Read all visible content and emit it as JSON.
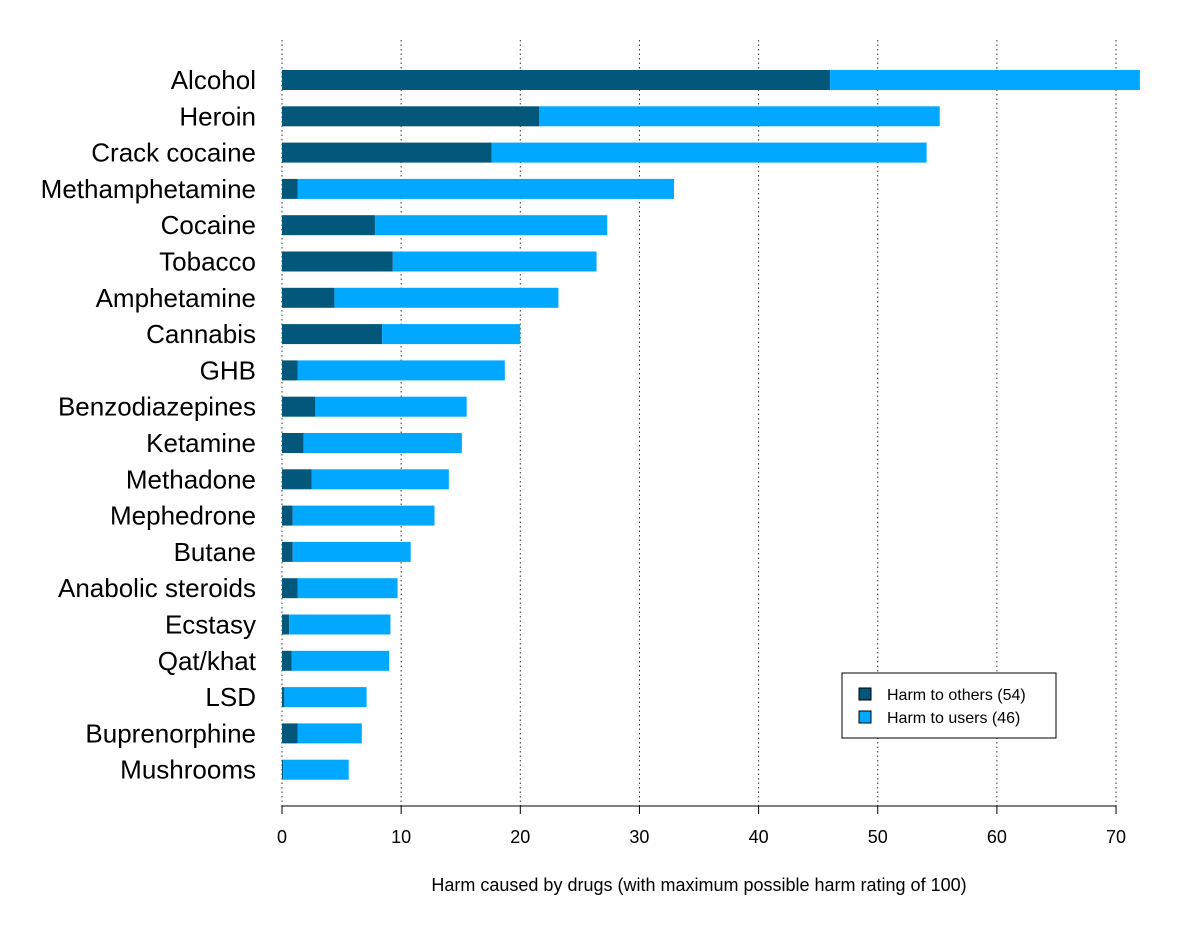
{
  "chart_data": {
    "type": "bar",
    "orientation": "horizontal",
    "stacked": true,
    "categories": [
      "Alcohol",
      "Heroin",
      "Crack cocaine",
      "Methamphetamine",
      "Cocaine",
      "Tobacco",
      "Amphetamine",
      "Cannabis",
      "GHB",
      "Benzodiazepines",
      "Ketamine",
      "Methadone",
      "Mephedrone",
      "Butane",
      "Anabolic steroids",
      "Ecstasy",
      "Qat/khat",
      "LSD",
      "Buprenorphine",
      "Mushrooms"
    ],
    "series": [
      {
        "name": "Harm to others (54)",
        "color": "#03577a",
        "values": [
          46,
          21.6,
          17.6,
          1.3,
          7.8,
          9.3,
          4.4,
          8.4,
          1.3,
          2.8,
          1.8,
          2.5,
          0.9,
          0.9,
          1.3,
          0.6,
          0.8,
          0.2,
          1.3,
          0.1
        ]
      },
      {
        "name": "Harm to users (46)",
        "color": "#00a9ff",
        "values": [
          26,
          33.6,
          36.5,
          31.6,
          19.5,
          17.1,
          18.8,
          11.6,
          17.4,
          12.7,
          13.3,
          11.5,
          11.9,
          9.9,
          8.4,
          8.5,
          8.2,
          6.9,
          5.4,
          5.5
        ]
      }
    ],
    "xlabel": "Harm caused by drugs (with maximum possible harm rating of 100)",
    "ylabel": "",
    "title": "",
    "xlim": [
      0,
      72
    ],
    "xticks": [
      0,
      10,
      20,
      30,
      40,
      50,
      60,
      70
    ],
    "grid": "vertical dotted",
    "legend_position": "bottom-right"
  }
}
